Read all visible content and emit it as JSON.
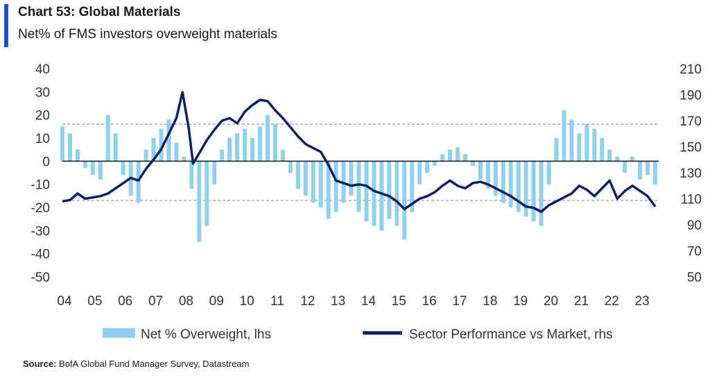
{
  "header": {
    "title": "Chart 53: Global Materials",
    "subtitle": "Net% of FMS investors overweight materials"
  },
  "footer": {
    "source_label": "Source:",
    "source_text": " BofA Global Fund Manager Survey, Datastream"
  },
  "colors": {
    "accent": "#1f4ec7",
    "bars": "#8fd0ee",
    "line": "#0e1f66",
    "zero_line": "#111111",
    "reference_lines": "#9a9a9a"
  },
  "chart_data": {
    "type": "bar+line",
    "x_tick_labels": [
      "04",
      "05",
      "06",
      "07",
      "08",
      "09",
      "10",
      "11",
      "12",
      "13",
      "14",
      "15",
      "16",
      "17",
      "18",
      "19",
      "20",
      "21",
      "22",
      "23"
    ],
    "x_range": [
      2004.0,
      2023.5
    ],
    "y_left": {
      "ticks": [
        "40",
        "30",
        "20",
        "10",
        "0",
        "-10",
        "-20",
        "-30",
        "-40",
        "-50"
      ],
      "range": [
        -50,
        40
      ]
    },
    "y_right": {
      "ticks": [
        "210",
        "190",
        "170",
        "150",
        "130",
        "110",
        "90",
        "70",
        "50"
      ],
      "range": [
        50,
        210
      ]
    },
    "reference_lines_lhs": [
      16,
      -17
    ],
    "grid": false,
    "legend_position": "bottom",
    "series": [
      {
        "name": "Net % Overweight, lhs",
        "type": "bar",
        "axis": "left",
        "x": [
          2004.0,
          2004.25,
          2004.5,
          2004.75,
          2005.0,
          2005.25,
          2005.5,
          2005.75,
          2006.0,
          2006.25,
          2006.5,
          2006.75,
          2007.0,
          2007.25,
          2007.5,
          2007.75,
          2008.0,
          2008.25,
          2008.5,
          2008.75,
          2009.0,
          2009.25,
          2009.5,
          2009.75,
          2010.0,
          2010.25,
          2010.5,
          2010.75,
          2011.0,
          2011.25,
          2011.5,
          2011.75,
          2012.0,
          2012.25,
          2012.5,
          2012.75,
          2013.0,
          2013.25,
          2013.5,
          2013.75,
          2014.0,
          2014.25,
          2014.5,
          2014.75,
          2015.0,
          2015.25,
          2015.5,
          2015.75,
          2016.0,
          2016.25,
          2016.5,
          2016.75,
          2017.0,
          2017.25,
          2017.5,
          2017.75,
          2018.0,
          2018.25,
          2018.5,
          2018.75,
          2019.0,
          2019.25,
          2019.5,
          2019.75,
          2020.0,
          2020.25,
          2020.5,
          2020.75,
          2021.0,
          2021.25,
          2021.5,
          2021.75,
          2022.0,
          2022.25,
          2022.5,
          2022.75,
          2023.0,
          2023.25,
          2023.5
        ],
        "values": [
          15,
          12,
          5,
          -3,
          -6,
          -8,
          20,
          12,
          -6,
          -15,
          -18,
          5,
          10,
          14,
          18,
          8,
          2,
          -12,
          -35,
          -28,
          -10,
          5,
          10,
          12,
          14,
          10,
          15,
          20,
          16,
          5,
          -5,
          -12,
          -15,
          -18,
          -20,
          -25,
          -22,
          -18,
          -15,
          -22,
          -26,
          -28,
          -30,
          -25,
          -28,
          -34,
          -22,
          -10,
          -5,
          -2,
          3,
          5,
          6,
          3,
          -2,
          -8,
          -12,
          -15,
          -18,
          -20,
          -22,
          -24,
          -26,
          -28,
          -10,
          10,
          22,
          18,
          12,
          16,
          14,
          10,
          5,
          2,
          -5,
          2,
          -8,
          -6,
          -10
        ]
      },
      {
        "name": "Sector Performance vs Market, rhs",
        "type": "line",
        "axis": "right",
        "x": [
          2004.0,
          2004.25,
          2004.5,
          2004.75,
          2005.0,
          2005.25,
          2005.5,
          2005.75,
          2006.0,
          2006.25,
          2006.5,
          2006.75,
          2007.0,
          2007.25,
          2007.5,
          2007.75,
          2007.95,
          2008.15,
          2008.3,
          2008.5,
          2008.75,
          2009.0,
          2009.25,
          2009.5,
          2009.75,
          2010.0,
          2010.25,
          2010.5,
          2010.75,
          2011.0,
          2011.25,
          2011.5,
          2011.75,
          2012.0,
          2012.25,
          2012.5,
          2012.75,
          2013.0,
          2013.25,
          2013.5,
          2013.75,
          2014.0,
          2014.25,
          2014.5,
          2014.75,
          2015.0,
          2015.25,
          2015.5,
          2015.75,
          2016.0,
          2016.25,
          2016.5,
          2016.75,
          2017.0,
          2017.25,
          2017.5,
          2017.75,
          2018.0,
          2018.25,
          2018.5,
          2018.75,
          2019.0,
          2019.25,
          2019.5,
          2019.75,
          2020.0,
          2020.25,
          2020.5,
          2020.75,
          2021.0,
          2021.25,
          2021.5,
          2021.75,
          2022.0,
          2022.25,
          2022.5,
          2022.75,
          2023.0,
          2023.25,
          2023.5
        ],
        "values": [
          108,
          109,
          114,
          110,
          111,
          112,
          114,
          118,
          122,
          126,
          124,
          133,
          140,
          148,
          160,
          172,
          192,
          165,
          137,
          145,
          155,
          163,
          170,
          172,
          168,
          177,
          182,
          186,
          185,
          178,
          172,
          165,
          158,
          152,
          149,
          146,
          136,
          124,
          122,
          120,
          121,
          120,
          116,
          114,
          112,
          108,
          102,
          106,
          110,
          112,
          115,
          120,
          124,
          120,
          118,
          122,
          123,
          121,
          118,
          115,
          112,
          108,
          104,
          103,
          100,
          105,
          108,
          111,
          114,
          120,
          117,
          112,
          118,
          124,
          110,
          116,
          120,
          116,
          112,
          104
        ]
      }
    ]
  }
}
